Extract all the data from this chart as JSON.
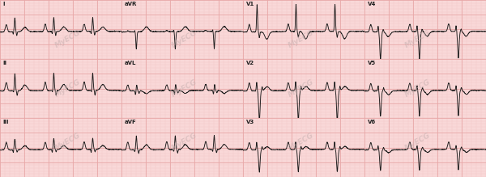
{
  "bg_color": "#f9d8d8",
  "grid_major_color": "#e8a8a8",
  "grid_minor_color": "#f2c4c4",
  "ecg_color": "#1a1a1a",
  "label_color": "#222222",
  "watermark_color": "#d0b0b0",
  "lead_labels": [
    "I",
    "aVR",
    "V1",
    "V4",
    "II",
    "aVL",
    "V2",
    "V5",
    "III",
    "aVF",
    "V3",
    "V6"
  ],
  "figsize": [
    6.0,
    2.19
  ],
  "dpi": 100,
  "row_separator_color": "#d09090",
  "border_color": "#c08080"
}
